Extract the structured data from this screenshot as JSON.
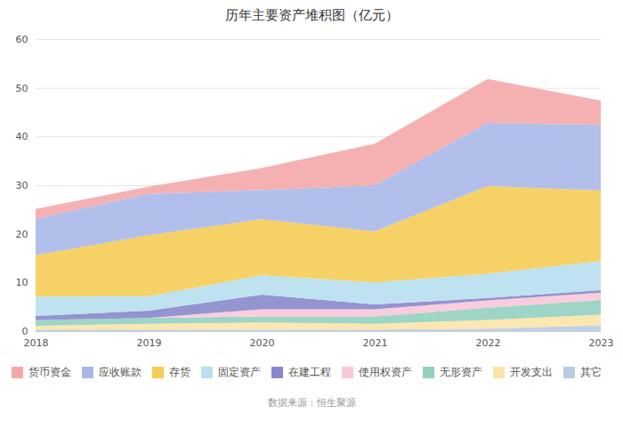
{
  "chart_data": {
    "type": "area",
    "stacked": true,
    "title": "历年主要资产堆积图（亿元）",
    "subtitle": "数据来源：恒生聚源",
    "x": [
      2018,
      2019,
      2020,
      2021,
      2022,
      2023
    ],
    "series": [
      {
        "name": "其它",
        "color": "#b8cce4",
        "values": [
          0.3,
          0.3,
          0.3,
          0.3,
          0.5,
          1.2
        ]
      },
      {
        "name": "开发支出",
        "color": "#fce4a8",
        "values": [
          0.8,
          1.2,
          1.5,
          1.2,
          1.8,
          2.2
        ]
      },
      {
        "name": "无形资产",
        "color": "#92d0c0",
        "values": [
          1.2,
          1.2,
          1.2,
          1.5,
          2.5,
          3.0
        ]
      },
      {
        "name": "使用权资产",
        "color": "#f9c8d8",
        "values": [
          0.0,
          0.0,
          1.5,
          1.5,
          1.5,
          1.5
        ]
      },
      {
        "name": "在建工程",
        "color": "#8888cc",
        "values": [
          0.8,
          1.5,
          3.0,
          1.0,
          0.5,
          0.5
        ]
      },
      {
        "name": "固定资产",
        "color": "#b8dff0",
        "values": [
          4.0,
          3.0,
          4.0,
          4.5,
          5.0,
          6.0
        ]
      },
      {
        "name": "存货",
        "color": "#f5cc55",
        "values": [
          8.5,
          12.5,
          11.5,
          10.5,
          18.0,
          14.5
        ]
      },
      {
        "name": "应收账款",
        "color": "#aab8e8",
        "values": [
          7.5,
          8.5,
          6.0,
          9.5,
          13.0,
          13.5
        ]
      },
      {
        "name": "货币资金",
        "color": "#f4a8a8",
        "values": [
          2.0,
          1.5,
          4.5,
          8.5,
          9.0,
          5.0
        ]
      }
    ],
    "xlim": [
      2018,
      2023
    ],
    "xticks": [
      2018,
      2019,
      2020,
      2021,
      2022,
      2023
    ],
    "ylim": [
      0,
      60
    ],
    "yticks": [
      0,
      10,
      20,
      30,
      40,
      50,
      60
    ],
    "grid": "y",
    "legend": "bottom"
  }
}
